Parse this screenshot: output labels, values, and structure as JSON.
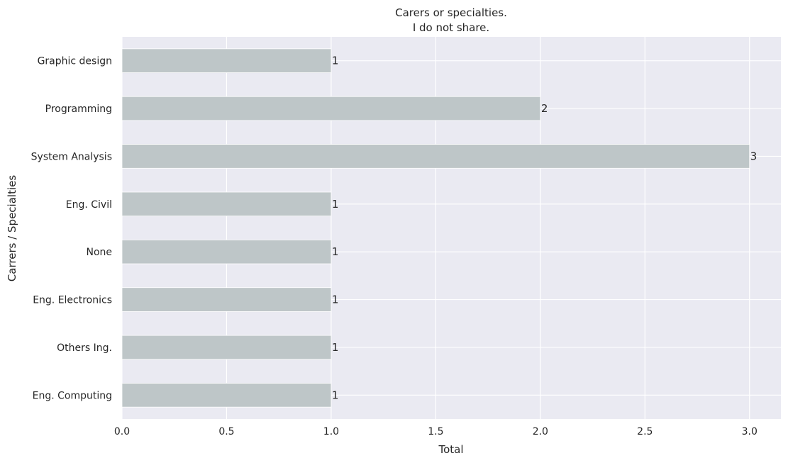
{
  "chart_data": {
    "type": "bar",
    "orientation": "horizontal",
    "title": "Carers or specialties.",
    "subtitle": "I do not share.",
    "xlabel": "Total",
    "ylabel": "Carrers / Specialties",
    "categories": [
      "Graphic design",
      "Programming",
      "System Analysis",
      "Eng. Civil",
      "None",
      "Eng. Electronics",
      "Others Ing.",
      "Eng. Computing"
    ],
    "values": [
      1,
      2,
      3,
      1,
      1,
      1,
      1,
      1
    ],
    "data_labels": [
      "1",
      "2",
      "3",
      "1",
      "1",
      "1",
      "1",
      "1"
    ],
    "xlim": [
      0,
      3.15
    ],
    "xticks": [
      "0.0",
      "0.5",
      "1.0",
      "1.5",
      "2.0",
      "2.5",
      "3.0"
    ],
    "grid": true,
    "colors": {
      "bar": "#bec6c8",
      "background": "#eaeaf2",
      "grid": "#ffffff",
      "text": "#262626"
    }
  }
}
